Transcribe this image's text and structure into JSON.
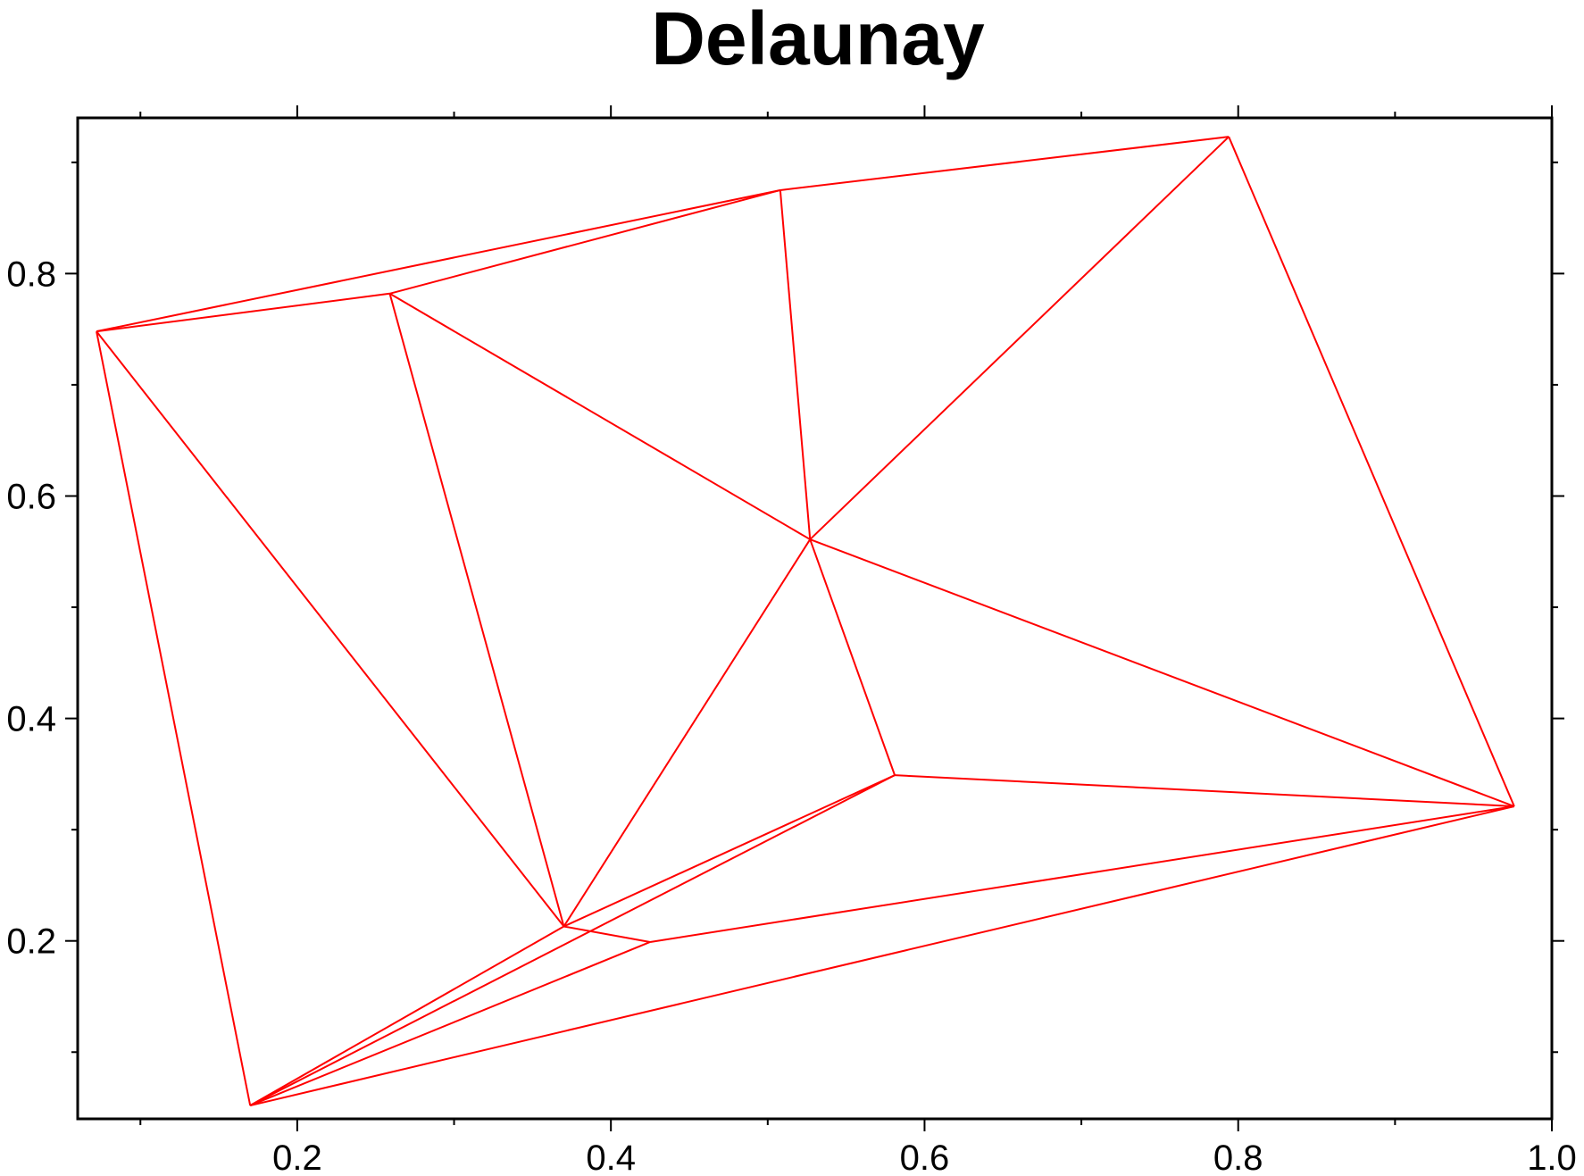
{
  "chart_data": {
    "type": "line",
    "title": "Delaunay",
    "xlabel": "",
    "ylabel": "",
    "xlim": [
      0.06,
      1.0
    ],
    "ylim": [
      0.04,
      0.94
    ],
    "x_major_ticks": [
      0.2,
      0.4,
      0.6,
      0.8,
      1.0
    ],
    "x_tick_labels": [
      "0.2",
      "0.4",
      "0.6",
      "0.8",
      "1.0"
    ],
    "x_minor_ticks": [
      0.1,
      0.3,
      0.5,
      0.7,
      0.9
    ],
    "y_major_ticks": [
      0.2,
      0.4,
      0.6,
      0.8
    ],
    "y_tick_labels": [
      "0.2",
      "0.4",
      "0.6",
      "0.8"
    ],
    "y_minor_ticks": [
      0.1,
      0.3,
      0.5,
      0.7,
      0.9
    ],
    "grid": false,
    "line_color": "#ff0000",
    "vertices": [
      {
        "x": 0.072,
        "y": 0.748
      },
      {
        "x": 0.259,
        "y": 0.782
      },
      {
        "x": 0.508,
        "y": 0.875
      },
      {
        "x": 0.794,
        "y": 0.923
      },
      {
        "x": 0.527,
        "y": 0.561
      },
      {
        "x": 0.976,
        "y": 0.321
      },
      {
        "x": 0.581,
        "y": 0.349
      },
      {
        "x": 0.37,
        "y": 0.213
      },
      {
        "x": 0.425,
        "y": 0.199
      },
      {
        "x": 0.17,
        "y": 0.052
      }
    ],
    "edges": [
      [
        0,
        1
      ],
      [
        0,
        2
      ],
      [
        1,
        2
      ],
      [
        2,
        3
      ],
      [
        3,
        5
      ],
      [
        2,
        4
      ],
      [
        3,
        4
      ],
      [
        1,
        4
      ],
      [
        1,
        7
      ],
      [
        0,
        7
      ],
      [
        0,
        9
      ],
      [
        4,
        7
      ],
      [
        4,
        6
      ],
      [
        4,
        5
      ],
      [
        6,
        5
      ],
      [
        6,
        7
      ],
      [
        6,
        9
      ],
      [
        7,
        8
      ],
      [
        7,
        9
      ],
      [
        8,
        5
      ],
      [
        8,
        9
      ],
      [
        9,
        5
      ]
    ]
  }
}
